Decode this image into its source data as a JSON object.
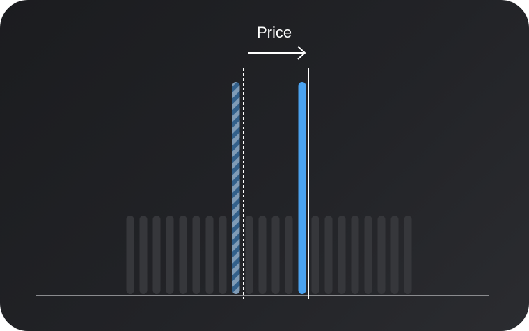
{
  "label": "Price",
  "bar_count": 22,
  "old_price_bar_index": 8,
  "new_price_bar_index": 13,
  "colors": {
    "background": "#1f2023",
    "bar": "#36373b",
    "new_price": "#4ba3f0",
    "old_price_dark": "#33608a",
    "old_price_light": "#7f9bb6",
    "line": "#ffffff",
    "baseline": "#8a8b8e"
  }
}
